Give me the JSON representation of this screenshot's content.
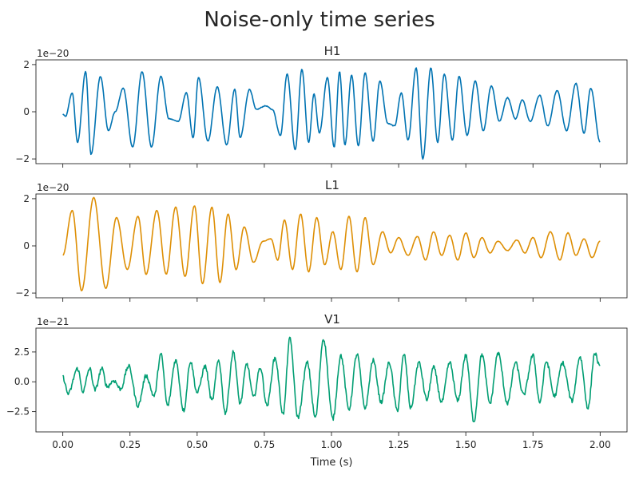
{
  "figure": {
    "title": "Noise-only time series",
    "xlabel": "Time (s)"
  },
  "chart_data": [
    {
      "type": "line",
      "title": "H1",
      "offset_text": "1e−20",
      "color": "#0173b2",
      "xlim": [
        -0.1,
        2.1
      ],
      "ylim": [
        -2.2,
        2.2
      ],
      "yticks": [
        -2,
        0,
        2
      ],
      "ytick_labels": [
        "−2",
        "0",
        "2"
      ],
      "xticks": [
        0.0,
        0.25,
        0.5,
        0.75,
        1.0,
        1.25,
        1.5,
        1.75,
        2.0
      ],
      "show_xtick_labels": false,
      "grid": false,
      "noise": 0.03,
      "series": [
        {
          "x": [
            0.0,
            0.01,
            0.035,
            0.055,
            0.085,
            0.105,
            0.14,
            0.17,
            0.195,
            0.225,
            0.26,
            0.295,
            0.33,
            0.365,
            0.395,
            0.43,
            0.46,
            0.485,
            0.505,
            0.54,
            0.575,
            0.61,
            0.64,
            0.66,
            0.695,
            0.72,
            0.755,
            0.78,
            0.81,
            0.835,
            0.865,
            0.89,
            0.915,
            0.935,
            0.955,
            0.985,
            1.01,
            1.03,
            1.05,
            1.075,
            1.1,
            1.125,
            1.155,
            1.18,
            1.21,
            1.235,
            1.26,
            1.285,
            1.315,
            1.34,
            1.37,
            1.395,
            1.42,
            1.45,
            1.475,
            1.505,
            1.535,
            1.565,
            1.595,
            1.625,
            1.655,
            1.685,
            1.71,
            1.74,
            1.775,
            1.805,
            1.84,
            1.875,
            1.91,
            1.94,
            1.965,
            2.0
          ],
          "values": [
            -0.1,
            -0.2,
            0.8,
            -1.3,
            1.7,
            -1.8,
            1.5,
            -0.8,
            0.0,
            1.0,
            -1.5,
            1.7,
            -1.5,
            1.5,
            -0.3,
            -0.4,
            0.8,
            -1.1,
            1.45,
            -1.25,
            1.05,
            -1.4,
            0.95,
            -1.1,
            0.95,
            0.1,
            0.25,
            0.1,
            -1.0,
            1.6,
            -1.6,
            1.8,
            -1.3,
            0.75,
            -0.9,
            1.45,
            -1.5,
            1.7,
            -1.4,
            1.55,
            -1.45,
            1.65,
            -1.25,
            1.3,
            -0.5,
            -0.6,
            0.8,
            -1.2,
            1.85,
            -2.0,
            1.85,
            -1.3,
            1.6,
            -1.2,
            1.5,
            -1.0,
            1.3,
            -0.8,
            1.1,
            -0.4,
            0.6,
            -0.3,
            0.5,
            -0.4,
            0.7,
            -0.6,
            0.9,
            -0.8,
            1.2,
            -0.9,
            1.0,
            -1.3
          ]
        }
      ]
    },
    {
      "type": "line",
      "title": "L1",
      "offset_text": "1e−20",
      "color": "#de8f05",
      "xlim": [
        -0.1,
        2.1
      ],
      "ylim": [
        -2.2,
        2.2
      ],
      "yticks": [
        -2,
        0,
        2
      ],
      "ytick_labels": [
        "−2",
        "0",
        "2"
      ],
      "xticks": [
        0.0,
        0.25,
        0.5,
        0.75,
        1.0,
        1.25,
        1.5,
        1.75,
        2.0
      ],
      "show_xtick_labels": false,
      "grid": false,
      "noise": 0.02,
      "series": [
        {
          "x": [
            0.0,
            0.035,
            0.07,
            0.115,
            0.16,
            0.2,
            0.24,
            0.28,
            0.31,
            0.35,
            0.385,
            0.42,
            0.455,
            0.49,
            0.52,
            0.555,
            0.585,
            0.615,
            0.645,
            0.675,
            0.71,
            0.745,
            0.775,
            0.8,
            0.825,
            0.855,
            0.885,
            0.915,
            0.945,
            0.975,
            1.005,
            1.035,
            1.065,
            1.095,
            1.125,
            1.155,
            1.19,
            1.22,
            1.25,
            1.285,
            1.32,
            1.35,
            1.38,
            1.41,
            1.44,
            1.47,
            1.5,
            1.53,
            1.56,
            1.59,
            1.62,
            1.655,
            1.69,
            1.72,
            1.75,
            1.78,
            1.815,
            1.85,
            1.88,
            1.91,
            1.94,
            1.97,
            2.0
          ],
          "values": [
            -0.4,
            1.5,
            -1.9,
            2.05,
            -1.8,
            1.2,
            -1.0,
            1.25,
            -1.2,
            1.5,
            -1.2,
            1.65,
            -1.3,
            1.7,
            -1.6,
            1.65,
            -1.55,
            1.35,
            -1.0,
            0.8,
            -0.7,
            0.2,
            0.3,
            -0.6,
            1.1,
            -1.0,
            1.35,
            -1.1,
            1.2,
            -0.8,
            0.6,
            -1.0,
            1.25,
            -1.1,
            1.2,
            -0.8,
            0.6,
            -0.3,
            0.35,
            -0.4,
            0.4,
            -0.6,
            0.6,
            -0.4,
            0.45,
            -0.6,
            0.55,
            -0.5,
            0.35,
            -0.3,
            0.2,
            -0.2,
            0.25,
            -0.3,
            0.35,
            -0.5,
            0.6,
            -0.6,
            0.55,
            -0.4,
            0.3,
            -0.5,
            0.2
          ]
        }
      ]
    },
    {
      "type": "line",
      "title": "V1",
      "offset_text": "1e−21",
      "color": "#029e73",
      "xlim": [
        -0.1,
        2.1
      ],
      "ylim": [
        -4.2,
        4.5
      ],
      "yticks": [
        -2.5,
        0.0,
        2.5
      ],
      "ytick_labels": [
        "−2.5",
        "0.0",
        "2.5"
      ],
      "xticks": [
        0.0,
        0.25,
        0.5,
        0.75,
        1.0,
        1.25,
        1.5,
        1.75,
        2.0
      ],
      "xtick_labels": [
        "0.00",
        "0.25",
        "0.50",
        "0.75",
        "1.00",
        "1.25",
        "1.50",
        "1.75",
        "2.00"
      ],
      "show_xtick_labels": true,
      "grid": false,
      "noise": 0.35,
      "series": [
        {
          "x": [
            0.0,
            0.02,
            0.055,
            0.075,
            0.1,
            0.12,
            0.145,
            0.165,
            0.19,
            0.215,
            0.245,
            0.28,
            0.31,
            0.34,
            0.365,
            0.39,
            0.42,
            0.45,
            0.475,
            0.5,
            0.53,
            0.555,
            0.58,
            0.605,
            0.635,
            0.66,
            0.685,
            0.71,
            0.735,
            0.76,
            0.79,
            0.82,
            0.845,
            0.875,
            0.91,
            0.94,
            0.97,
            1.005,
            1.035,
            1.065,
            1.095,
            1.125,
            1.155,
            1.185,
            1.215,
            1.245,
            1.27,
            1.295,
            1.325,
            1.355,
            1.38,
            1.41,
            1.44,
            1.47,
            1.5,
            1.53,
            1.56,
            1.59,
            1.62,
            1.655,
            1.685,
            1.715,
            1.75,
            1.775,
            1.8,
            1.83,
            1.86,
            1.895,
            1.925,
            1.955,
            1.98,
            2.0
          ],
          "values": [
            0.4,
            -1.0,
            1.1,
            -0.8,
            1.1,
            -0.7,
            1.1,
            -0.4,
            0.1,
            -0.6,
            1.3,
            -2.0,
            0.5,
            -1.2,
            2.3,
            -2.0,
            1.8,
            -2.4,
            1.7,
            -0.9,
            1.3,
            -1.6,
            1.8,
            -2.6,
            2.5,
            -1.8,
            1.5,
            -1.3,
            1.2,
            -2.0,
            2.0,
            -2.7,
            3.6,
            -3.0,
            1.6,
            -3.0,
            3.6,
            -3.1,
            2.2,
            -2.3,
            2.3,
            -2.2,
            1.8,
            -1.7,
            1.6,
            -2.4,
            2.3,
            -2.2,
            1.6,
            -1.5,
            1.2,
            -1.7,
            1.6,
            -1.6,
            2.2,
            -3.3,
            2.3,
            -1.8,
            2.4,
            -1.8,
            1.6,
            -1.1,
            2.2,
            -1.7,
            1.7,
            -1.2,
            1.6,
            -1.6,
            2.1,
            -2.2,
            2.4,
            1.2
          ]
        }
      ]
    }
  ]
}
